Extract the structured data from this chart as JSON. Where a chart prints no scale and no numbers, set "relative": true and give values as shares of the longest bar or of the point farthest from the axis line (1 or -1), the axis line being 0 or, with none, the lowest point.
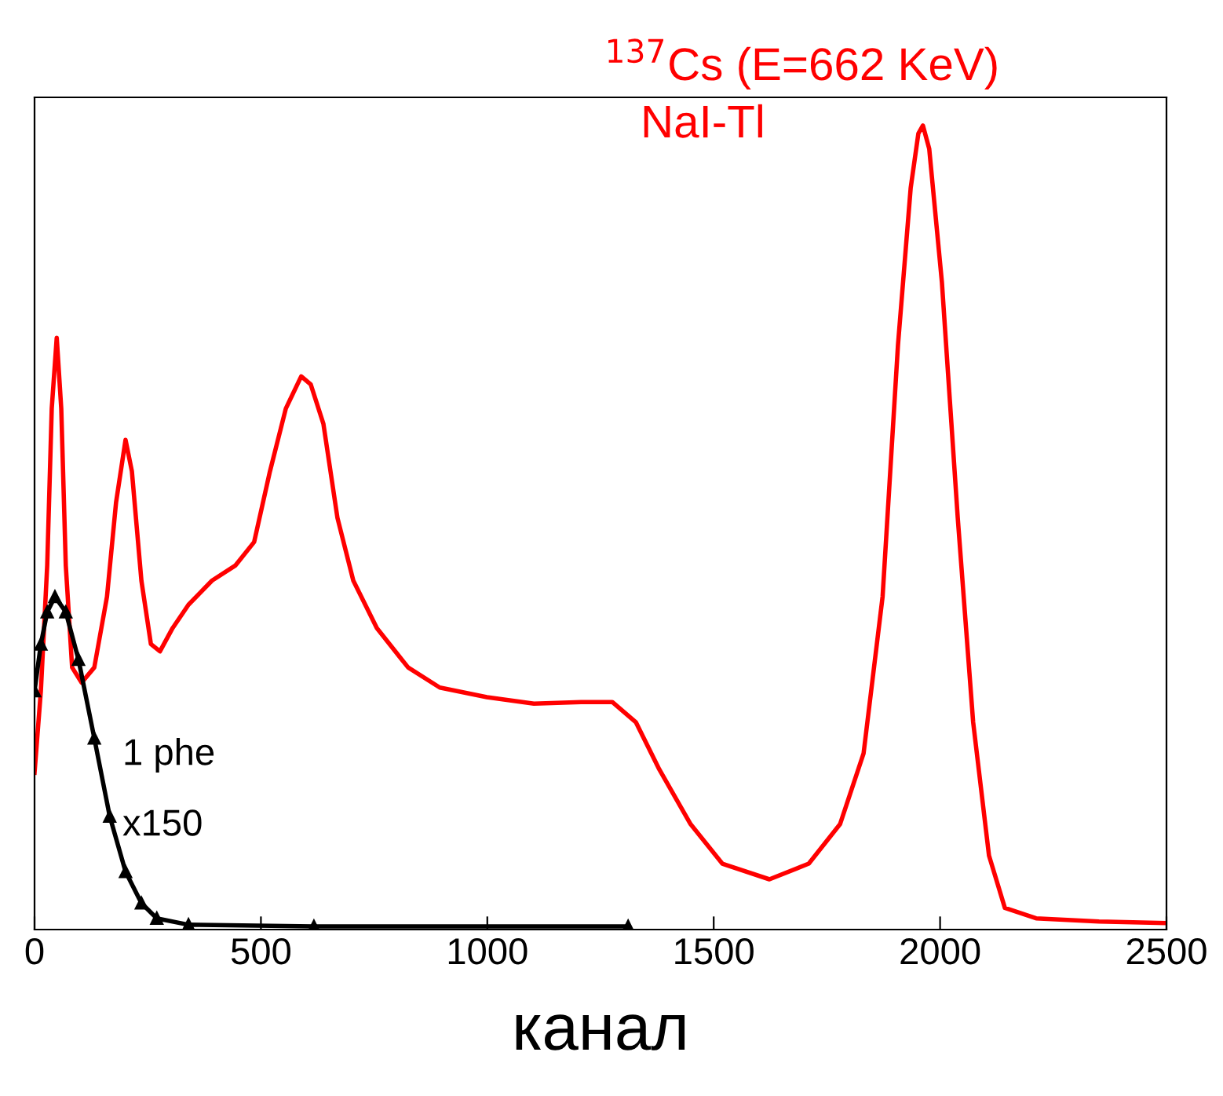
{
  "chart_data": {
    "type": "line",
    "relative": true,
    "xlabel": "канал",
    "xlim": [
      0,
      2500
    ],
    "xticks": [
      0,
      500,
      1000,
      1500,
      2000,
      2500
    ],
    "tick_labels": "x",
    "grid": false,
    "legend": false,
    "annotations": [
      "$^{137}$Cs (E=662 KeV)",
      "NaI-Tl",
      "1 phe",
      "x150"
    ],
    "series": [
      {
        "color": "#ff0000",
        "marker": "none",
        "x": [
          0,
          14,
          28,
          38,
          49,
          59,
          69,
          83,
          104,
          132,
          160,
          180,
          201,
          215,
          236,
          257,
          277,
          305,
          340,
          392,
          444,
          485,
          520,
          555,
          589,
          610,
          638,
          669,
          704,
          756,
          825,
          895,
          999,
          1103,
          1207,
          1276,
          1328,
          1380,
          1449,
          1519,
          1623,
          1710,
          1779,
          1831,
          1873,
          1907,
          1935,
          1952,
          1962,
          1976,
          2004,
          2039,
          2073,
          2108,
          2143,
          2212,
          2351,
          2500
        ],
        "values": [
          0.195,
          0.297,
          0.453,
          0.648,
          0.736,
          0.648,
          0.453,
          0.326,
          0.307,
          0.326,
          0.414,
          0.531,
          0.609,
          0.57,
          0.434,
          0.355,
          0.346,
          0.375,
          0.404,
          0.434,
          0.453,
          0.482,
          0.57,
          0.648,
          0.688,
          0.678,
          0.629,
          0.512,
          0.434,
          0.375,
          0.326,
          0.301,
          0.289,
          0.281,
          0.283,
          0.283,
          0.258,
          0.199,
          0.131,
          0.082,
          0.0625,
          0.082,
          0.131,
          0.219,
          0.414,
          0.727,
          0.922,
          0.99,
          1.0,
          0.971,
          0.805,
          0.512,
          0.258,
          0.092,
          0.027,
          0.014,
          0.01,
          0.008
        ]
      },
      {
        "color": "#000000",
        "marker": "triangle",
        "x": [
          0,
          14,
          28,
          45,
          69,
          97,
          132,
          166,
          201,
          236,
          270,
          340,
          617,
          1311
        ],
        "values": [
          0.297,
          0.355,
          0.395,
          0.414,
          0.395,
          0.336,
          0.238,
          0.141,
          0.072,
          0.033,
          0.014,
          0.006,
          0.004,
          0.004
        ]
      }
    ]
  }
}
